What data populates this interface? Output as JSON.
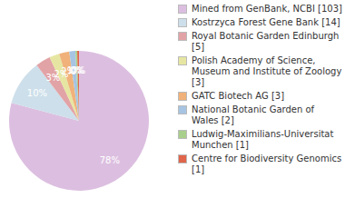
{
  "chart_data": {
    "type": "pie",
    "categories": [
      "Mined from GenBank, NCBI [103]",
      "Kostrzyca Forest Gene Bank [14]",
      "Royal Botanic Garden Edinburgh [5]",
      "Polish Academy of Science, Museum and Institute of Zoology [3]",
      "GATC Biotech AG [3]",
      "National Botanic Garden of Wales [2]",
      "Ludwig-Maximilians-Universitat Munchen [1]",
      "Centre for Biodiversity Genomics [1]"
    ],
    "values": [
      78,
      10.4,
      3.4,
      2.3,
      2.3,
      1.4,
      0.4,
      0.4
    ],
    "value_labels": [
      "78%",
      "10%",
      "3%",
      "2%",
      "2%",
      "1%",
      "0%",
      "0%"
    ],
    "colors": [
      "#dcbfe0",
      "#cddfea",
      "#e2a3a6",
      "#e6e6a2",
      "#f0b27a",
      "#a7c4e2",
      "#a9cf8c",
      "#e0654a"
    ],
    "data_labels": true,
    "legend": "right"
  }
}
